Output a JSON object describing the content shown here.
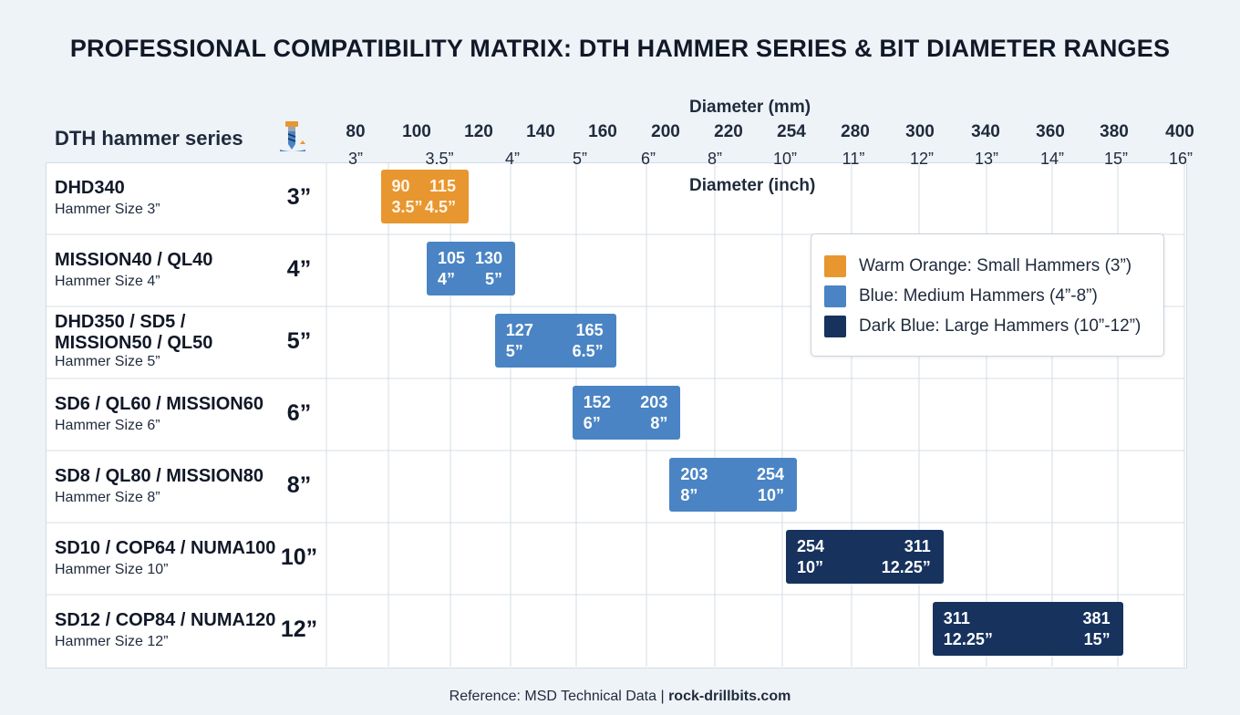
{
  "title": "PROFESSIONAL COMPATIBILITY MATRIX: DTH HAMMER SERIES & BIT DIAMETER RANGES",
  "row_header": "DTH hammer series",
  "icons": {
    "header_icon": "drill-bit-icon"
  },
  "colors": {
    "small": "#e8962f",
    "medium": "#4a84c4",
    "large": "#17325d",
    "grid": "#d5dce5"
  },
  "legend": [
    {
      "label": "Warm Orange: Small Hammers (3”)",
      "color": "#e8962f"
    },
    {
      "label": "Blue: Medium Hammers (4”-8”)",
      "color": "#4a84c4"
    },
    {
      "label": "Dark Blue: Large Hammers (10”-12”)",
      "color": "#17325d"
    }
  ],
  "footer": {
    "prefix": "Reference: MSD Technical Data | ",
    "site": "rock-drillbits.com"
  },
  "chart_data": {
    "type": "bar",
    "orientation": "horizontal-range",
    "title": "PROFESSIONAL COMPATIBILITY MATRIX: DTH HAMMER SERIES & BIT DIAMETER RANGES",
    "xlabel_top": "Diameter (mm)",
    "xlabel_bottom": "Diameter (inch)",
    "x_ticks_mm": [
      "80",
      "100",
      "120",
      "140",
      "160",
      "200",
      "220",
      "254",
      "280",
      "300",
      "340",
      "360",
      "380",
      "400"
    ],
    "x_ticks_inch": [
      "3”",
      "3.5”",
      "4”",
      "5”",
      "6”",
      "8”",
      "10”",
      "11”",
      "12”",
      "13”",
      "14”",
      "15”",
      "16”"
    ],
    "grid": true,
    "legend_position": "top-right",
    "rows": [
      {
        "series": "DHD340",
        "sub": "Hammer Size 3”",
        "size": "3”",
        "category": "small",
        "min_mm": 90,
        "max_mm": 115,
        "min_in": "3.5”",
        "max_in": "4.5”"
      },
      {
        "series": "MISSION40 / QL40",
        "sub": "Hammer Size 4”",
        "size": "4”",
        "category": "medium",
        "min_mm": 105,
        "max_mm": 130,
        "min_in": "4”",
        "max_in": "5”"
      },
      {
        "series": "DHD350 / SD5 / MISSION50 / QL50",
        "sub": "Hammer Size 5”",
        "size": "5”",
        "category": "medium",
        "min_mm": 127,
        "max_mm": 165,
        "min_in": "5”",
        "max_in": "6.5”"
      },
      {
        "series": "SD6 / QL60 / MISSION60",
        "sub": "Hammer Size 6”",
        "size": "6”",
        "category": "medium",
        "min_mm": 152,
        "max_mm": 203,
        "min_in": "6”",
        "max_in": "8”"
      },
      {
        "series": "SD8 / QL80 / MISSION80",
        "sub": "Hammer Size 8”",
        "size": "8”",
        "category": "medium",
        "min_mm": 203,
        "max_mm": 254,
        "min_in": "8”",
        "max_in": "10”"
      },
      {
        "series": "SD10 / COP64 / NUMA100",
        "sub": "Hammer Size 10”",
        "size": "10”",
        "category": "large",
        "min_mm": 254,
        "max_mm": 311,
        "min_in": "10”",
        "max_in": "12.25”"
      },
      {
        "series": "SD12 / COP84 / NUMA120",
        "sub": "Hammer Size 12”",
        "size": "12”",
        "category": "large",
        "min_mm": 311,
        "max_mm": 381,
        "min_in": "12.25”",
        "max_in": "15”"
      }
    ]
  }
}
